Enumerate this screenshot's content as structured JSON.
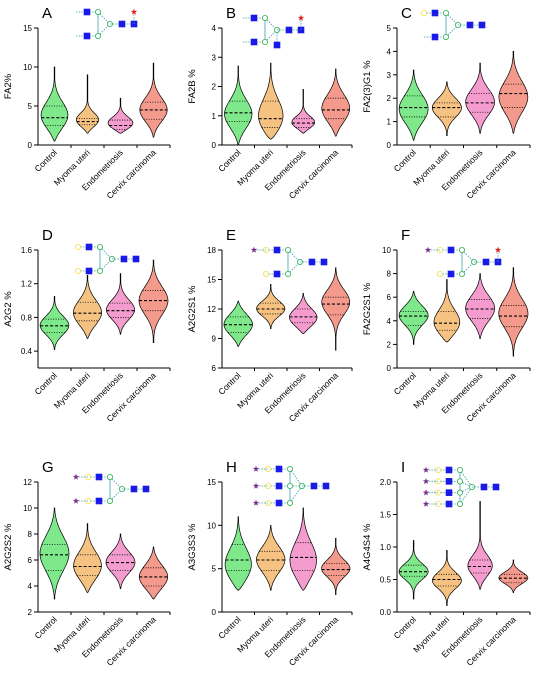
{
  "figure": {
    "categories": [
      "Control",
      "Myoma uteri",
      "Endometriosis",
      "Cervix carcinoma"
    ],
    "group_colors": {
      "Control": "#7ee88a",
      "Myoma uteri": "#f6c282",
      "Endometriosis": "#f39ccd",
      "Cervix carcinoma": "#f49a8c"
    },
    "glycan_symbol_colors": {
      "glcnac_square": "#1a1ae6",
      "mannose_circle": "#22b14c",
      "galactose_circle": "#f0e040",
      "fucose_star": "#e02020",
      "sialic_acid_star": "#7b2d8e"
    }
  },
  "chart_data": [
    {
      "type": "violin",
      "panel_label": "A",
      "ylabel": "FA2%",
      "ylim": [
        0,
        15
      ],
      "yticks": [
        "0",
        "5",
        "10",
        "15"
      ],
      "categories": [
        "Control",
        "Myoma uteri",
        "Endometriosis",
        "Cervix carcinoma"
      ],
      "series": [
        {
          "name": "Control",
          "min": 0.5,
          "q1": 2.5,
          "median": 3.5,
          "q3": 5.0,
          "max": 10.0,
          "mode": 3.5
        },
        {
          "name": "Myoma uteri",
          "min": 1.5,
          "q1": 2.6,
          "median": 3.0,
          "q3": 3.4,
          "max": 9.0,
          "mode": 3.0
        },
        {
          "name": "Endometriosis",
          "min": 1.5,
          "q1": 2.0,
          "median": 2.5,
          "q3": 3.2,
          "max": 6.0,
          "mode": 2.6
        },
        {
          "name": "Cervix carcinoma",
          "min": 1.0,
          "q1": 3.3,
          "median": 4.5,
          "q3": 5.5,
          "max": 10.5,
          "mode": 4.3
        }
      ]
    },
    {
      "type": "violin",
      "panel_label": "B",
      "ylabel": "FA2B %",
      "ylim": [
        0,
        4
      ],
      "yticks": [
        "0",
        "1",
        "2",
        "3",
        "4"
      ],
      "categories": [
        "Control",
        "Myoma uteri",
        "Endometriosis",
        "Cervix carcinoma"
      ],
      "series": [
        {
          "name": "Control",
          "min": 0.0,
          "q1": 0.8,
          "median": 1.1,
          "q3": 1.5,
          "max": 2.7,
          "mode": 1.0
        },
        {
          "name": "Myoma uteri",
          "min": 0.2,
          "q1": 0.6,
          "median": 0.9,
          "q3": 1.5,
          "max": 2.8,
          "mode": 0.8
        },
        {
          "name": "Endometriosis",
          "min": 0.4,
          "q1": 0.6,
          "median": 0.75,
          "q3": 0.9,
          "max": 1.9,
          "mode": 0.72
        },
        {
          "name": "Cervix carcinoma",
          "min": 0.3,
          "q1": 0.9,
          "median": 1.2,
          "q3": 1.6,
          "max": 2.6,
          "mode": 1.2
        }
      ]
    },
    {
      "type": "violin",
      "panel_label": "C",
      "ylabel": "FA2(3)G1 %",
      "ylim": [
        0,
        5
      ],
      "yticks": [
        "0",
        "1",
        "2",
        "3",
        "4",
        "5"
      ],
      "categories": [
        "Control",
        "Myoma uteri",
        "Endometriosis",
        "Cervix carcinoma"
      ],
      "series": [
        {
          "name": "Control",
          "min": 0.2,
          "q1": 1.2,
          "median": 1.6,
          "q3": 2.1,
          "max": 3.2,
          "mode": 1.5
        },
        {
          "name": "Myoma uteri",
          "min": 0.4,
          "q1": 1.2,
          "median": 1.6,
          "q3": 1.8,
          "max": 2.7,
          "mode": 1.6
        },
        {
          "name": "Endometriosis",
          "min": 0.5,
          "q1": 1.4,
          "median": 1.8,
          "q3": 2.2,
          "max": 3.5,
          "mode": 1.8
        },
        {
          "name": "Cervix carcinoma",
          "min": 0.5,
          "q1": 1.6,
          "median": 2.2,
          "q3": 2.6,
          "max": 4.0,
          "mode": 2.0
        }
      ]
    },
    {
      "type": "violin",
      "panel_label": "D",
      "ylabel": "A2G2 %",
      "ylim": [
        0.2,
        1.6
      ],
      "yticks": [
        "0.4",
        "0.8",
        "1.2",
        "1.6"
      ],
      "categories": [
        "Control",
        "Myoma uteri",
        "Endometriosis",
        "Cervix carcinoma"
      ],
      "series": [
        {
          "name": "Control",
          "min": 0.42,
          "q1": 0.62,
          "median": 0.7,
          "q3": 0.78,
          "max": 1.05,
          "mode": 0.7
        },
        {
          "name": "Myoma uteri",
          "min": 0.55,
          "q1": 0.76,
          "median": 0.85,
          "q3": 0.98,
          "max": 1.3,
          "mode": 0.84
        },
        {
          "name": "Endometriosis",
          "min": 0.6,
          "q1": 0.8,
          "median": 0.88,
          "q3": 0.97,
          "max": 1.32,
          "mode": 0.88
        },
        {
          "name": "Cervix carcinoma",
          "min": 0.5,
          "q1": 0.88,
          "median": 1.0,
          "q3": 1.12,
          "max": 1.48,
          "mode": 1.0
        }
      ]
    },
    {
      "type": "violin",
      "panel_label": "E",
      "ylabel": "A2G2S1 %",
      "ylim": [
        6,
        18
      ],
      "yticks": [
        "6",
        "9",
        "12",
        "15",
        "18"
      ],
      "categories": [
        "Control",
        "Myoma uteri",
        "Endometriosis",
        "Cervix carcinoma"
      ],
      "series": [
        {
          "name": "Control",
          "min": 8.2,
          "q1": 9.6,
          "median": 10.4,
          "q3": 11.2,
          "max": 12.8,
          "mode": 10.4
        },
        {
          "name": "Myoma uteri",
          "min": 10.0,
          "q1": 11.5,
          "median": 12.0,
          "q3": 12.6,
          "max": 14.5,
          "mode": 12.0
        },
        {
          "name": "Endometriosis",
          "min": 9.5,
          "q1": 10.6,
          "median": 11.2,
          "q3": 12.0,
          "max": 13.6,
          "mode": 11.0
        },
        {
          "name": "Cervix carcinoma",
          "min": 7.8,
          "q1": 11.4,
          "median": 12.5,
          "q3": 13.2,
          "max": 16.2,
          "mode": 12.8
        }
      ]
    },
    {
      "type": "violin",
      "panel_label": "F",
      "ylabel": "FA2G2S1 %",
      "ylim": [
        0,
        10
      ],
      "yticks": [
        "0",
        "2",
        "4",
        "6",
        "8",
        "10"
      ],
      "categories": [
        "Control",
        "Myoma uteri",
        "Endometriosis",
        "Cervix carcinoma"
      ],
      "series": [
        {
          "name": "Control",
          "min": 2.0,
          "q1": 3.6,
          "median": 4.4,
          "q3": 4.8,
          "max": 6.5,
          "mode": 4.5
        },
        {
          "name": "Myoma uteri",
          "min": 2.2,
          "q1": 3.2,
          "median": 3.8,
          "q3": 4.8,
          "max": 7.5,
          "mode": 3.6
        },
        {
          "name": "Endometriosis",
          "min": 2.5,
          "q1": 4.2,
          "median": 5.0,
          "q3": 5.8,
          "max": 8.0,
          "mode": 5.0
        },
        {
          "name": "Cervix carcinoma",
          "min": 1.0,
          "q1": 3.5,
          "median": 4.4,
          "q3": 5.3,
          "max": 8.5,
          "mode": 4.6
        }
      ]
    },
    {
      "type": "violin",
      "panel_label": "G",
      "ylabel": "A2G2S2 %",
      "ylim": [
        2,
        12
      ],
      "yticks": [
        "2",
        "4",
        "6",
        "8",
        "10",
        "12"
      ],
      "categories": [
        "Control",
        "Myoma uteri",
        "Endometriosis",
        "Cervix carcinoma"
      ],
      "series": [
        {
          "name": "Control",
          "min": 3.0,
          "q1": 5.2,
          "median": 6.4,
          "q3": 7.2,
          "max": 10.0,
          "mode": 6.5
        },
        {
          "name": "Myoma uteri",
          "min": 3.5,
          "q1": 4.8,
          "median": 5.5,
          "q3": 6.4,
          "max": 8.8,
          "mode": 5.4
        },
        {
          "name": "Endometriosis",
          "min": 3.8,
          "q1": 5.2,
          "median": 5.8,
          "q3": 6.4,
          "max": 8.0,
          "mode": 5.8
        },
        {
          "name": "Cervix carcinoma",
          "min": 3.0,
          "q1": 4.0,
          "median": 4.7,
          "q3": 5.4,
          "max": 7.0,
          "mode": 4.6
        }
      ]
    },
    {
      "type": "violin",
      "panel_label": "H",
      "ylabel": "A3G3S3 %",
      "ylim": [
        0,
        15
      ],
      "yticks": [
        "0",
        "5",
        "10",
        "15"
      ],
      "categories": [
        "Control",
        "Myoma uteri",
        "Endometriosis",
        "Cervix carcinoma"
      ],
      "series": [
        {
          "name": "Control",
          "min": 2.5,
          "q1": 4.8,
          "median": 6.0,
          "q3": 7.8,
          "max": 11.0,
          "mode": 5.0
        },
        {
          "name": "Myoma uteri",
          "min": 2.5,
          "q1": 4.8,
          "median": 6.0,
          "q3": 7.0,
          "max": 10.0,
          "mode": 6.0
        },
        {
          "name": "Endometriosis",
          "min": 2.5,
          "q1": 4.8,
          "median": 6.3,
          "q3": 8.0,
          "max": 12.0,
          "mode": 5.5
        },
        {
          "name": "Cervix carcinoma",
          "min": 2.0,
          "q1": 4.2,
          "median": 4.9,
          "q3": 5.6,
          "max": 8.5,
          "mode": 5.0
        }
      ]
    },
    {
      "type": "violin",
      "panel_label": "I",
      "ylabel": "A4G4S4 %",
      "ylim": [
        0,
        2.0
      ],
      "yticks": [
        "0.0",
        "0.5",
        "1.0",
        "1.5",
        "2.0"
      ],
      "categories": [
        "Control",
        "Myoma uteri",
        "Endometriosis",
        "Cervix carcinoma"
      ],
      "series": [
        {
          "name": "Control",
          "min": 0.2,
          "q1": 0.55,
          "median": 0.62,
          "q3": 0.72,
          "max": 1.1,
          "mode": 0.62
        },
        {
          "name": "Myoma uteri",
          "min": 0.1,
          "q1": 0.4,
          "median": 0.5,
          "q3": 0.58,
          "max": 0.95,
          "mode": 0.48
        },
        {
          "name": "Endometriosis",
          "min": 0.35,
          "q1": 0.6,
          "median": 0.7,
          "q3": 0.8,
          "max": 1.7,
          "mode": 0.68
        },
        {
          "name": "Cervix carcinoma",
          "min": 0.3,
          "q1": 0.45,
          "median": 0.52,
          "q3": 0.58,
          "max": 0.8,
          "mode": 0.52
        }
      ]
    }
  ]
}
